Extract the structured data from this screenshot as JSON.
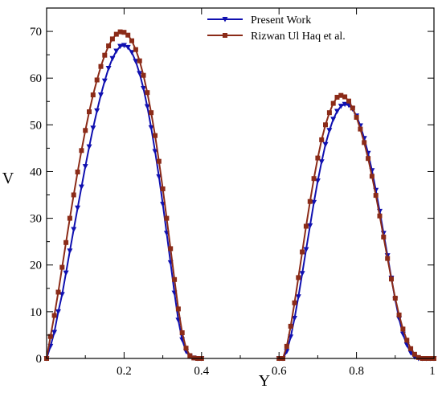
{
  "chart_data": {
    "type": "line",
    "xlabel": "Y",
    "ylabel": "V",
    "xlim": [
      0,
      1
    ],
    "ylim": [
      0,
      75
    ],
    "x_ticks": [
      0.2,
      0.4,
      0.6,
      0.8,
      1
    ],
    "x_tick_labels": [
      "0.2",
      "0.4",
      "0.6",
      "0.8",
      "1"
    ],
    "y_ticks": [
      0,
      10,
      20,
      30,
      40,
      50,
      60,
      70
    ],
    "y_tick_labels": [
      "0",
      "10",
      "20",
      "30",
      "40",
      "50",
      "60",
      "70"
    ],
    "legend_position": "top-right",
    "series": [
      {
        "name": "Present Work",
        "color": "#1010b0",
        "marker": "triangle-down",
        "x": [
          0.0,
          0.01,
          0.02,
          0.03,
          0.04,
          0.05,
          0.06,
          0.07,
          0.08,
          0.09,
          0.1,
          0.11,
          0.12,
          0.13,
          0.14,
          0.15,
          0.16,
          0.17,
          0.18,
          0.19,
          0.2,
          0.21,
          0.22,
          0.23,
          0.24,
          0.25,
          0.26,
          0.27,
          0.28,
          0.29,
          0.3,
          0.31,
          0.32,
          0.33,
          0.34,
          0.35,
          0.36,
          0.37,
          0.38,
          0.39,
          0.4,
          0.6,
          0.61,
          0.62,
          0.63,
          0.64,
          0.65,
          0.66,
          0.67,
          0.68,
          0.69,
          0.7,
          0.71,
          0.72,
          0.73,
          0.74,
          0.75,
          0.76,
          0.77,
          0.78,
          0.79,
          0.8,
          0.81,
          0.82,
          0.83,
          0.84,
          0.85,
          0.86,
          0.87,
          0.88,
          0.89,
          0.9,
          0.91,
          0.92,
          0.93,
          0.94,
          0.95,
          0.96,
          0.97,
          0.98,
          0.99,
          1.0
        ],
        "y": [
          0.0,
          2.6,
          5.6,
          10.0,
          13.7,
          18.3,
          23.0,
          27.6,
          32.2,
          36.7,
          41.1,
          45.3,
          49.3,
          53.0,
          56.4,
          59.4,
          62.1,
          64.2,
          65.8,
          66.8,
          67.0,
          66.6,
          65.5,
          63.6,
          61.0,
          57.8,
          53.9,
          49.4,
          44.3,
          38.9,
          33.0,
          26.8,
          20.5,
          14.0,
          8.2,
          4.0,
          1.5,
          0.4,
          0.1,
          0.0,
          0.0,
          0.0,
          0.0,
          1.5,
          4.6,
          8.6,
          13.2,
          18.2,
          23.3,
          28.4,
          33.4,
          38.0,
          42.1,
          45.8,
          48.8,
          51.2,
          52.9,
          54.0,
          54.4,
          54.2,
          53.4,
          51.9,
          49.8,
          47.1,
          43.9,
          40.2,
          36.0,
          31.5,
          26.8,
          22.0,
          17.2,
          12.6,
          8.5,
          5.2,
          2.9,
          1.2,
          0.3,
          0.0,
          0.0,
          0.0,
          0.0,
          0.0
        ]
      },
      {
        "name": "Rizwan Ul Haq et al.",
        "color": "#8b2b18",
        "marker": "square",
        "x": [
          0.0,
          0.01,
          0.02,
          0.03,
          0.04,
          0.05,
          0.06,
          0.07,
          0.08,
          0.09,
          0.1,
          0.11,
          0.12,
          0.13,
          0.14,
          0.15,
          0.16,
          0.17,
          0.18,
          0.19,
          0.2,
          0.21,
          0.22,
          0.23,
          0.24,
          0.25,
          0.26,
          0.27,
          0.28,
          0.29,
          0.3,
          0.31,
          0.32,
          0.33,
          0.34,
          0.35,
          0.36,
          0.37,
          0.38,
          0.39,
          0.4,
          0.6,
          0.61,
          0.62,
          0.63,
          0.64,
          0.65,
          0.66,
          0.67,
          0.68,
          0.69,
          0.7,
          0.71,
          0.72,
          0.73,
          0.74,
          0.75,
          0.76,
          0.77,
          0.78,
          0.79,
          0.8,
          0.81,
          0.82,
          0.83,
          0.84,
          0.85,
          0.86,
          0.87,
          0.88,
          0.89,
          0.9,
          0.91,
          0.92,
          0.93,
          0.94,
          0.95,
          0.96,
          0.97,
          0.98,
          0.99,
          1.0
        ],
        "y": [
          0.0,
          4.7,
          9.2,
          14.2,
          19.5,
          24.8,
          30.0,
          35.0,
          39.9,
          44.5,
          48.8,
          52.8,
          56.4,
          59.6,
          62.5,
          64.9,
          66.9,
          68.4,
          69.4,
          69.9,
          69.8,
          69.2,
          68.0,
          66.1,
          63.7,
          60.6,
          56.9,
          52.6,
          47.7,
          42.2,
          36.3,
          30.0,
          23.5,
          16.9,
          10.6,
          5.5,
          2.2,
          0.6,
          0.1,
          0.0,
          0.0,
          0.0,
          0.0,
          2.6,
          6.9,
          11.9,
          17.3,
          22.8,
          28.3,
          33.6,
          38.5,
          42.9,
          46.8,
          50.0,
          52.6,
          54.6,
          55.9,
          56.3,
          56.0,
          55.1,
          53.6,
          51.6,
          49.1,
          46.2,
          42.8,
          39.0,
          34.9,
          30.5,
          26.0,
          21.4,
          17.0,
          12.9,
          9.3,
          6.3,
          3.9,
          2.1,
          0.9,
          0.2,
          0.0,
          0.0,
          0.0,
          0.0
        ]
      }
    ]
  }
}
